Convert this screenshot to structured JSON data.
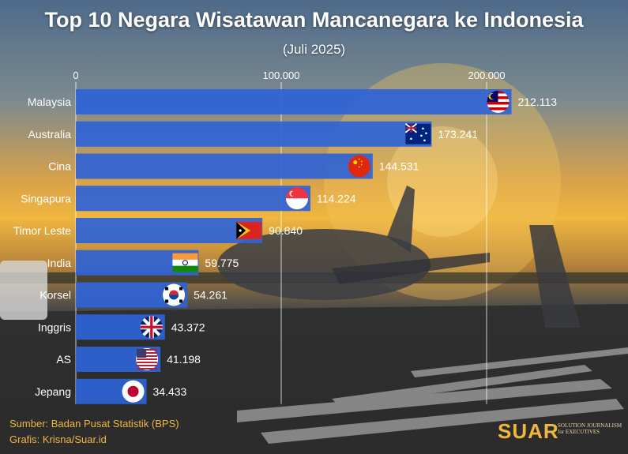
{
  "title": "Top 10 Negara Wisatawan Mancanegara ke Indonesia",
  "subtitle": "(Juli 2025)",
  "chart_data": {
    "type": "bar",
    "orientation": "horizontal",
    "categories": [
      "Malaysia",
      "Australia",
      "Cina",
      "Singapura",
      "Timor Leste",
      "India",
      "Korsel",
      "Inggris",
      "AS",
      "Jepang"
    ],
    "values": [
      212113,
      173241,
      144531,
      114224,
      90840,
      59775,
      54261,
      43372,
      41198,
      34433
    ],
    "data_labels": [
      "212.113",
      "173.241",
      "144.531",
      "114.224",
      "90.840",
      "59.775",
      "54.261",
      "43.372",
      "41.198",
      "34.433"
    ],
    "x_ticks": [
      0,
      100000,
      200000
    ],
    "x_tick_labels": [
      "0",
      "100.000",
      "200.000"
    ],
    "xlim": [
      0,
      215000
    ],
    "axis_position": "top",
    "grid": true,
    "bar_color": "#2f63d6",
    "flags": [
      "malaysia-flag",
      "australia-flag",
      "china-flag",
      "singapore-flag",
      "timor-leste-flag",
      "india-flag",
      "south-korea-flag",
      "uk-flag",
      "usa-flag",
      "japan-flag"
    ]
  },
  "source": "Sumber: Badan Pusat Statistik (BPS)",
  "credit": "Grafis: Krisna/Suar.id",
  "brand": {
    "name": "SUAR",
    "tagline_1": "SOLUTION JOURNALISM",
    "tagline_2": "for EXECUTIVES",
    "color": "#f0b640"
  }
}
